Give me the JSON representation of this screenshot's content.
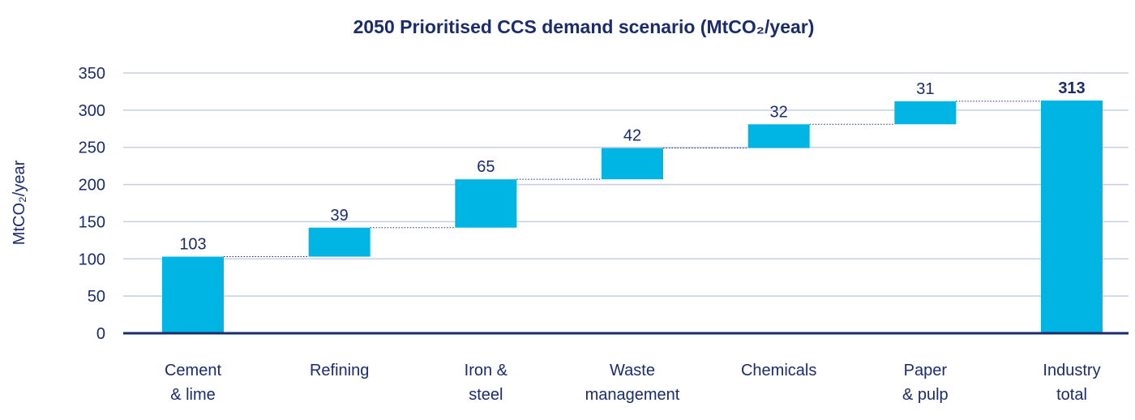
{
  "chart_data": {
    "type": "bar",
    "subtype": "waterfall",
    "title": "2050 Prioritised CCS demand scenario (MtCO₂/year)",
    "xlabel": "",
    "ylabel": "MtCO₂/year",
    "ylim": [
      0,
      350
    ],
    "yticks": [
      0,
      50,
      100,
      150,
      200,
      250,
      300,
      350
    ],
    "grid": true,
    "categories": [
      [
        "Cement",
        "& lime"
      ],
      [
        "Refining"
      ],
      [
        "Iron &",
        "steel"
      ],
      [
        "Waste",
        "management"
      ],
      [
        "Chemicals"
      ],
      [
        "Paper",
        "& pulp"
      ],
      [
        "Industry",
        "total"
      ]
    ],
    "values": [
      103,
      39,
      65,
      42,
      32,
      31,
      313
    ],
    "total_index": 6,
    "colors": {
      "bar": "#00b4e3",
      "text": "#1a2c6b",
      "grid": "#c7cfe6",
      "axis": "#1a2c6b",
      "connector": "#1a2c6b"
    }
  }
}
